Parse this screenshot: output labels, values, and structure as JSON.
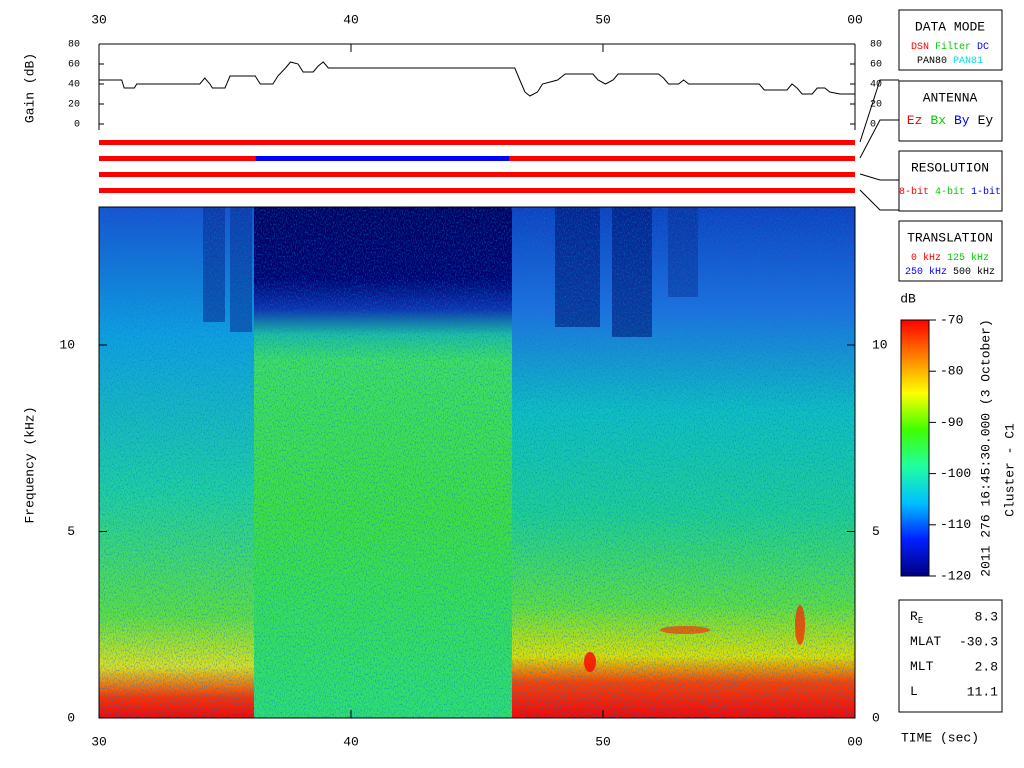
{
  "chart_data": [
    {
      "type": "line",
      "y_label": "Gain (dB)",
      "color": "#000000",
      "x": [
        30.0,
        30.9,
        31.0,
        31.4,
        31.5,
        34.0,
        34.2,
        34.4,
        34.5,
        35.0,
        35.2,
        36.2,
        36.4,
        36.9,
        37.1,
        37.4,
        37.6,
        37.9,
        38.1,
        38.5,
        38.7,
        38.9,
        39.1,
        46.5,
        46.7,
        46.9,
        47.1,
        47.4,
        47.6,
        48.2,
        48.5,
        49.6,
        49.8,
        50.1,
        50.4,
        50.6,
        52.2,
        52.4,
        52.6,
        53.0,
        53.2,
        53.4,
        56.2,
        56.4,
        57.3,
        57.5,
        57.7,
        57.9,
        58.3,
        58.5,
        58.8,
        59.0,
        59.4,
        60.0
      ],
      "values": [
        44,
        44,
        36,
        36,
        40,
        40,
        46,
        40,
        36,
        36,
        48,
        48,
        40,
        40,
        48,
        56,
        62,
        60,
        52,
        52,
        58,
        62,
        56,
        56,
        44,
        32,
        28,
        32,
        40,
        44,
        50,
        50,
        44,
        40,
        44,
        50,
        50,
        46,
        40,
        40,
        44,
        40,
        40,
        34,
        34,
        40,
        36,
        30,
        30,
        36,
        36,
        32,
        30,
        30
      ],
      "xlim": [
        30,
        60
      ],
      "xticks": [
        30,
        40,
        50,
        {
          "value": 60,
          "label": "00"
        }
      ],
      "ylim": [
        0,
        80
      ],
      "yticks": [
        0,
        20,
        40,
        60,
        80
      ]
    },
    {
      "type": "status",
      "xlim": [
        30,
        60
      ],
      "bars": [
        {
          "segments": [
            {
              "start": 30,
              "end": 60,
              "color": "#ff0000"
            }
          ]
        },
        {
          "segments": [
            {
              "start": 30,
              "end": 36.2,
              "color": "#ff0000"
            },
            {
              "start": 36.2,
              "end": 46.3,
              "color": "#0000ff"
            },
            {
              "start": 46.3,
              "end": 60,
              "color": "#ff0000"
            }
          ]
        },
        {
          "segments": [
            {
              "start": 30,
              "end": 60,
              "color": "#ff0000"
            }
          ]
        },
        {
          "segments": [
            {
              "start": 30,
              "end": 60,
              "color": "#ff0000"
            }
          ]
        }
      ]
    },
    {
      "type": "spectrogram",
      "y_label": "Frequency (kHz)",
      "x_label": "TIME (sec)",
      "xlim": [
        30,
        60
      ],
      "xticks": [
        30,
        40,
        50,
        {
          "value": 60,
          "label": "00"
        }
      ],
      "ylim": [
        0,
        13.7
      ],
      "yticks": [
        0,
        5,
        10
      ],
      "colorbar": {
        "label": "dB",
        "lim": [
          -120,
          -70
        ],
        "ticks": [
          -70,
          -80,
          -90,
          -100,
          -110,
          -120
        ],
        "colors": [
          "#000080",
          "#0020ff",
          "#00c0ff",
          "#20ffa0",
          "#40ff00",
          "#ffff00",
          "#ff8000",
          "#ff0000"
        ]
      }
    }
  ],
  "legend_panels": [
    {
      "title": "DATA MODE",
      "rows": [
        [
          {
            "text": "DSN",
            "color": "#ff0000"
          },
          {
            "text": "Filter",
            "color": "#00cc00"
          },
          {
            "text": "DC",
            "color": "#0000ff"
          }
        ],
        [
          {
            "text": "PAN80",
            "color": "#000000"
          },
          {
            "text": "PAN81",
            "color": "#00dddd"
          }
        ]
      ]
    },
    {
      "title": "ANTENNA",
      "rows": [
        [
          {
            "text": "Ez",
            "color": "#ff0000"
          },
          {
            "text": "Bx",
            "color": "#00cc00"
          },
          {
            "text": "By",
            "color": "#0000ff"
          },
          {
            "text": "Ey",
            "color": "#000000"
          }
        ]
      ]
    },
    {
      "title": "RESOLUTION",
      "rows": [
        [
          {
            "text": "8-bit",
            "color": "#ff0000"
          },
          {
            "text": "4-bit",
            "color": "#00cc00"
          },
          {
            "text": "1-bit",
            "color": "#0000ff"
          }
        ]
      ]
    },
    {
      "title": "TRANSLATION",
      "rows": [
        [
          {
            "text": "0 kHz",
            "color": "#ff0000"
          },
          {
            "text": "125 kHz",
            "color": "#00cc00"
          }
        ],
        [
          {
            "text": "250 kHz",
            "color": "#0000ff"
          },
          {
            "text": "500 kHz",
            "color": "#000000"
          }
        ]
      ]
    }
  ],
  "caption": {
    "date": "2011 276 16:45:30.000 (3 October)",
    "spacecraft": "Cluster - C1"
  },
  "orbit": [
    {
      "label": "R",
      "sub": "E",
      "value": 8.3
    },
    {
      "label": "MLAT",
      "value": -30.3
    },
    {
      "label": "MLT",
      "value": 2.8
    },
    {
      "label": "L",
      "value": 11.1
    }
  ]
}
